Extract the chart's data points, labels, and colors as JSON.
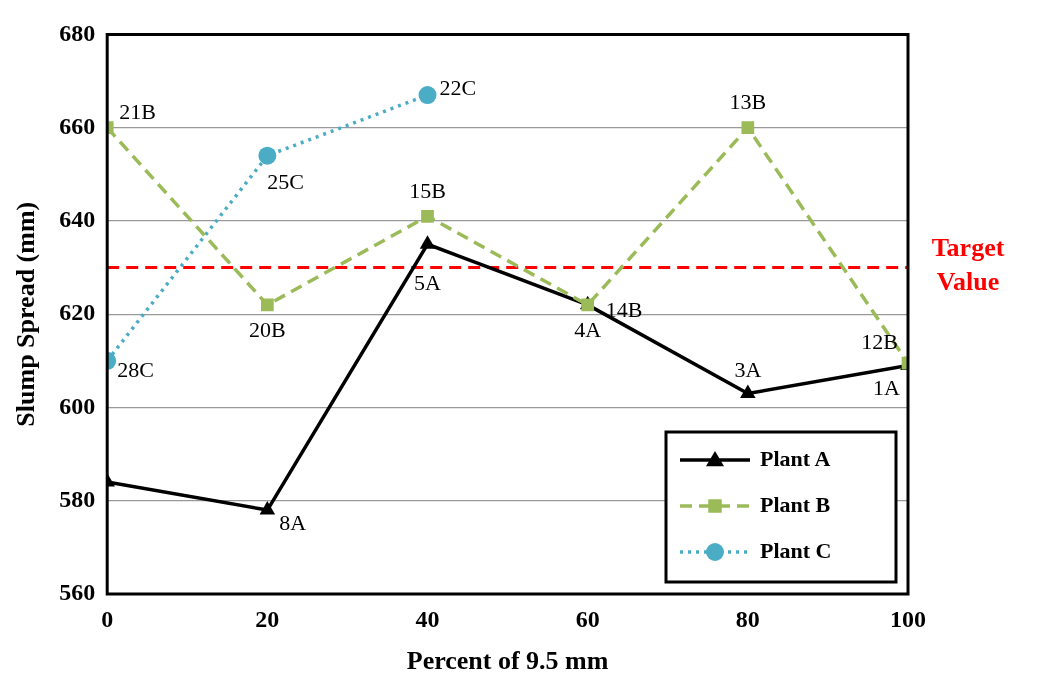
{
  "chart_data": {
    "type": "line",
    "xlabel": "Percent of 9.5 mm",
    "ylabel": "Slump Spread (mm)",
    "xlim": [
      0,
      100
    ],
    "xticks": [
      0,
      20,
      40,
      60,
      80,
      100
    ],
    "ylim": [
      560,
      680
    ],
    "yticks": [
      560,
      580,
      600,
      620,
      640,
      660,
      680
    ],
    "grid": "y",
    "legend": "bottom right",
    "series": [
      {
        "name": "Plant A",
        "color": "#000000",
        "marker": "triangle",
        "line_style": "solid",
        "x": [
          0,
          20,
          40,
          60,
          80,
          100
        ],
        "values": [
          584,
          578,
          635,
          622,
          603,
          609
        ]
      },
      {
        "name": "Plant B",
        "color": "#9bbb59",
        "marker": "square",
        "line_style": "dashed",
        "x": [
          0,
          20,
          40,
          60,
          80,
          100
        ],
        "values": [
          660,
          622,
          641,
          622,
          660,
          609.5
        ]
      },
      {
        "name": "Plant C",
        "color": "#4bacc6",
        "marker": "circle",
        "line_style": "dotted",
        "x": [
          0,
          20,
          40
        ],
        "values": [
          610,
          654,
          667
        ]
      }
    ],
    "ref_lines": [
      {
        "axis": "y",
        "value": 630,
        "label": "Target Value",
        "color": "#ff0000",
        "line_style": "dashed"
      }
    ],
    "annotations": [
      {
        "text": "21B",
        "x": 0,
        "y": 660
      },
      {
        "text": "20B",
        "x": 20,
        "y": 622
      },
      {
        "text": "15B",
        "x": 40,
        "y": 641
      },
      {
        "text": "14B",
        "x": 60,
        "y": 622
      },
      {
        "text": "13B",
        "x": 80,
        "y": 660
      },
      {
        "text": "12B",
        "x": 100,
        "y": 609.5
      },
      {
        "text": "8A",
        "x": 20,
        "y": 578
      },
      {
        "text": "5A",
        "x": 40,
        "y": 635
      },
      {
        "text": "4A",
        "x": 60,
        "y": 622
      },
      {
        "text": "3A",
        "x": 80,
        "y": 603
      },
      {
        "text": "1A",
        "x": 100,
        "y": 609
      },
      {
        "text": "28C",
        "x": 0,
        "y": 610
      },
      {
        "text": "25C",
        "x": 20,
        "y": 654
      },
      {
        "text": "22C",
        "x": 40,
        "y": 667
      }
    ]
  }
}
